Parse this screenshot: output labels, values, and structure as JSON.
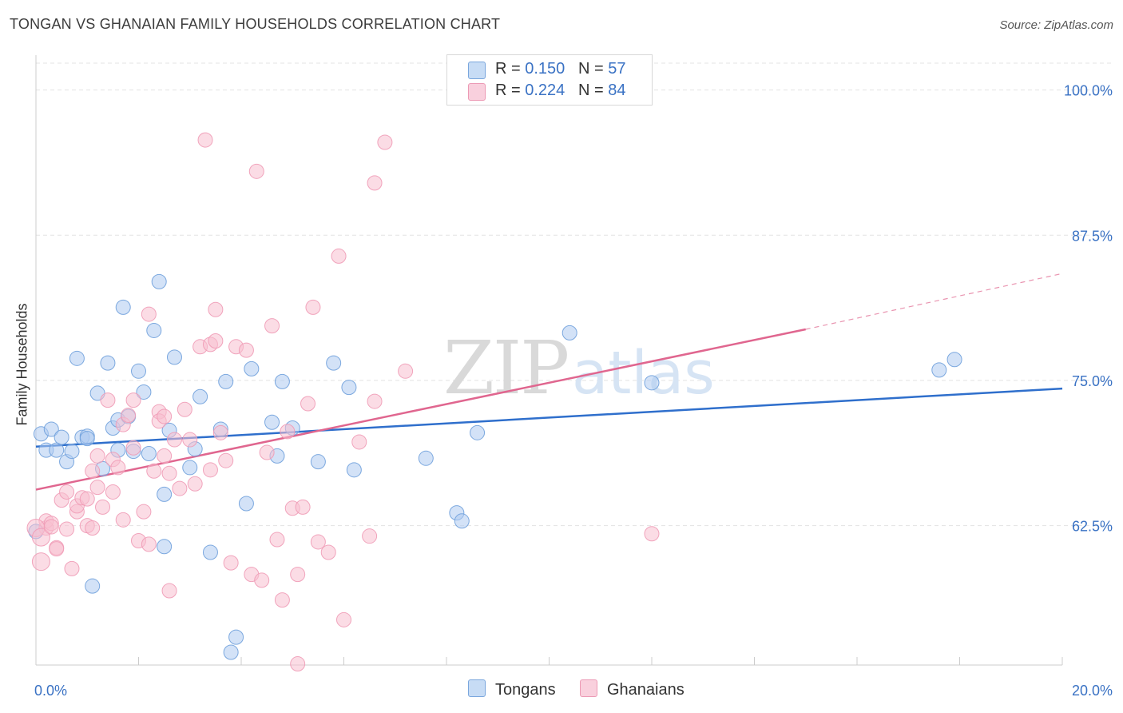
{
  "title": "TONGAN VS GHANAIAN FAMILY HOUSEHOLDS CORRELATION CHART",
  "source": "Source: ZipAtlas.com",
  "watermark": {
    "zip": "ZIP",
    "atlas": "atlas"
  },
  "legend": {
    "rows": [
      {
        "r_label": "R = ",
        "r_value": "0.150",
        "n_label": "N = ",
        "n_value": "57",
        "color": "#aecbf0"
      },
      {
        "r_label": "R = ",
        "r_value": "0.224",
        "n_label": "N = ",
        "n_value": "84",
        "color": "#f7bfd0"
      }
    ]
  },
  "bottom_legend": {
    "items": [
      {
        "label": "Tongans",
        "color": "#aecbf0"
      },
      {
        "label": "Ghanaians",
        "color": "#f7bfd0"
      }
    ]
  },
  "chart_data": {
    "type": "scatter",
    "title": "TONGAN VS GHANAIAN FAMILY HOUSEHOLDS CORRELATION CHART",
    "xlabel": "",
    "ylabel": "Family Households",
    "xlim": [
      0,
      20
    ],
    "ylim": [
      50.5,
      103
    ],
    "x_tick_labels": [
      "0.0%",
      "20.0%"
    ],
    "y_ticks": [
      62.5,
      75.0,
      87.5,
      100.0
    ],
    "y_tick_labels": [
      "62.5%",
      "75.0%",
      "87.5%",
      "100.0%"
    ],
    "grid": true,
    "legend_position": "top-center",
    "series": [
      {
        "name": "Tongans",
        "color": "#6fa0dc",
        "fill": "#aecbf0",
        "trend": {
          "x": [
            0,
            20
          ],
          "y": [
            69.3,
            74.3
          ],
          "color": "#2f6fcc"
        },
        "points": [
          [
            0.1,
            70.4
          ],
          [
            0.3,
            70.8
          ],
          [
            0.2,
            69.0
          ],
          [
            0.4,
            69.0
          ],
          [
            0.5,
            70.1
          ],
          [
            0.6,
            68.0
          ],
          [
            0.7,
            68.9
          ],
          [
            0.8,
            76.9
          ],
          [
            0.9,
            70.1
          ],
          [
            1.0,
            70.2
          ],
          [
            1.0,
            70.0
          ],
          [
            1.1,
            57.3
          ],
          [
            1.2,
            73.9
          ],
          [
            1.3,
            67.4
          ],
          [
            1.4,
            76.5
          ],
          [
            1.5,
            70.9
          ],
          [
            1.6,
            71.6
          ],
          [
            1.6,
            69.0
          ],
          [
            1.7,
            81.3
          ],
          [
            1.8,
            71.9
          ],
          [
            1.9,
            68.9
          ],
          [
            2.0,
            75.8
          ],
          [
            2.1,
            74.0
          ],
          [
            2.2,
            68.7
          ],
          [
            2.3,
            79.3
          ],
          [
            2.4,
            83.5
          ],
          [
            2.5,
            65.2
          ],
          [
            2.5,
            60.7
          ],
          [
            2.6,
            70.7
          ],
          [
            2.7,
            77.0
          ],
          [
            3.0,
            67.5
          ],
          [
            3.1,
            69.1
          ],
          [
            3.2,
            73.6
          ],
          [
            3.4,
            60.2
          ],
          [
            3.6,
            70.8
          ],
          [
            3.7,
            74.9
          ],
          [
            3.9,
            52.9
          ],
          [
            3.8,
            51.6
          ],
          [
            4.1,
            64.4
          ],
          [
            4.2,
            76.0
          ],
          [
            4.6,
            71.4
          ],
          [
            4.7,
            68.5
          ],
          [
            4.8,
            74.9
          ],
          [
            5.0,
            70.9
          ],
          [
            5.5,
            68.0
          ],
          [
            5.8,
            76.5
          ],
          [
            6.1,
            74.4
          ],
          [
            6.2,
            67.3
          ],
          [
            7.6,
            68.3
          ],
          [
            8.2,
            63.6
          ],
          [
            8.3,
            62.9
          ],
          [
            8.6,
            70.5
          ],
          [
            10.4,
            79.1
          ],
          [
            12.0,
            74.8
          ],
          [
            17.6,
            75.9
          ],
          [
            17.9,
            76.8
          ],
          [
            0.0,
            62.0
          ]
        ]
      },
      {
        "name": "Ghanaians",
        "color": "#ef9bb6",
        "fill": "#f7bfd0",
        "trend": {
          "x": [
            0,
            15
          ],
          "y": [
            65.6,
            79.4
          ],
          "color": "#e0668f"
        },
        "trend_dashed": {
          "x": [
            15,
            20
          ],
          "y": [
            79.4,
            84.2
          ]
        },
        "points": [
          [
            0.1,
            59.4
          ],
          [
            0.2,
            62.3
          ],
          [
            0.2,
            62.9
          ],
          [
            0.3,
            62.7
          ],
          [
            0.4,
            60.6
          ],
          [
            0.5,
            64.7
          ],
          [
            0.6,
            65.4
          ],
          [
            0.6,
            62.2
          ],
          [
            0.7,
            58.8
          ],
          [
            0.8,
            63.7
          ],
          [
            0.8,
            64.2
          ],
          [
            0.9,
            64.9
          ],
          [
            1.0,
            64.8
          ],
          [
            1.0,
            62.5
          ],
          [
            1.1,
            62.3
          ],
          [
            1.1,
            67.2
          ],
          [
            1.2,
            68.5
          ],
          [
            1.2,
            65.8
          ],
          [
            1.3,
            64.1
          ],
          [
            1.4,
            73.3
          ],
          [
            1.5,
            68.2
          ],
          [
            1.5,
            65.4
          ],
          [
            1.6,
            67.5
          ],
          [
            1.7,
            71.2
          ],
          [
            1.7,
            63.0
          ],
          [
            1.8,
            72.0
          ],
          [
            1.9,
            69.2
          ],
          [
            1.9,
            73.3
          ],
          [
            2.0,
            61.2
          ],
          [
            2.1,
            63.7
          ],
          [
            2.2,
            60.9
          ],
          [
            2.2,
            80.7
          ],
          [
            2.3,
            67.2
          ],
          [
            2.4,
            72.3
          ],
          [
            2.4,
            71.5
          ],
          [
            2.5,
            68.5
          ],
          [
            2.5,
            71.9
          ],
          [
            2.6,
            56.9
          ],
          [
            2.6,
            67.0
          ],
          [
            2.7,
            69.9
          ],
          [
            2.8,
            65.7
          ],
          [
            2.9,
            72.5
          ],
          [
            3.0,
            69.9
          ],
          [
            3.1,
            66.1
          ],
          [
            3.2,
            77.9
          ],
          [
            3.3,
            95.7
          ],
          [
            3.4,
            78.1
          ],
          [
            3.4,
            67.3
          ],
          [
            3.5,
            78.4
          ],
          [
            3.5,
            81.1
          ],
          [
            3.6,
            70.5
          ],
          [
            3.7,
            68.1
          ],
          [
            3.8,
            59.3
          ],
          [
            3.9,
            77.9
          ],
          [
            4.1,
            77.6
          ],
          [
            4.2,
            58.3
          ],
          [
            4.3,
            93.0
          ],
          [
            4.4,
            57.8
          ],
          [
            4.5,
            68.8
          ],
          [
            4.6,
            79.7
          ],
          [
            4.7,
            61.3
          ],
          [
            4.8,
            56.1
          ],
          [
            4.9,
            70.6
          ],
          [
            5.0,
            64.0
          ],
          [
            5.1,
            58.3
          ],
          [
            5.1,
            50.6
          ],
          [
            5.2,
            64.1
          ],
          [
            5.3,
            73.0
          ],
          [
            5.4,
            81.3
          ],
          [
            5.5,
            61.1
          ],
          [
            5.7,
            60.2
          ],
          [
            5.9,
            85.7
          ],
          [
            6.0,
            54.4
          ],
          [
            6.3,
            69.7
          ],
          [
            6.5,
            61.6
          ],
          [
            6.6,
            73.2
          ],
          [
            6.6,
            92.0
          ],
          [
            6.8,
            95.5
          ],
          [
            7.2,
            75.8
          ],
          [
            12.0,
            61.8
          ],
          [
            0.0,
            62.3
          ],
          [
            0.1,
            61.5
          ],
          [
            0.3,
            62.4
          ],
          [
            0.4,
            60.5
          ]
        ]
      }
    ]
  }
}
